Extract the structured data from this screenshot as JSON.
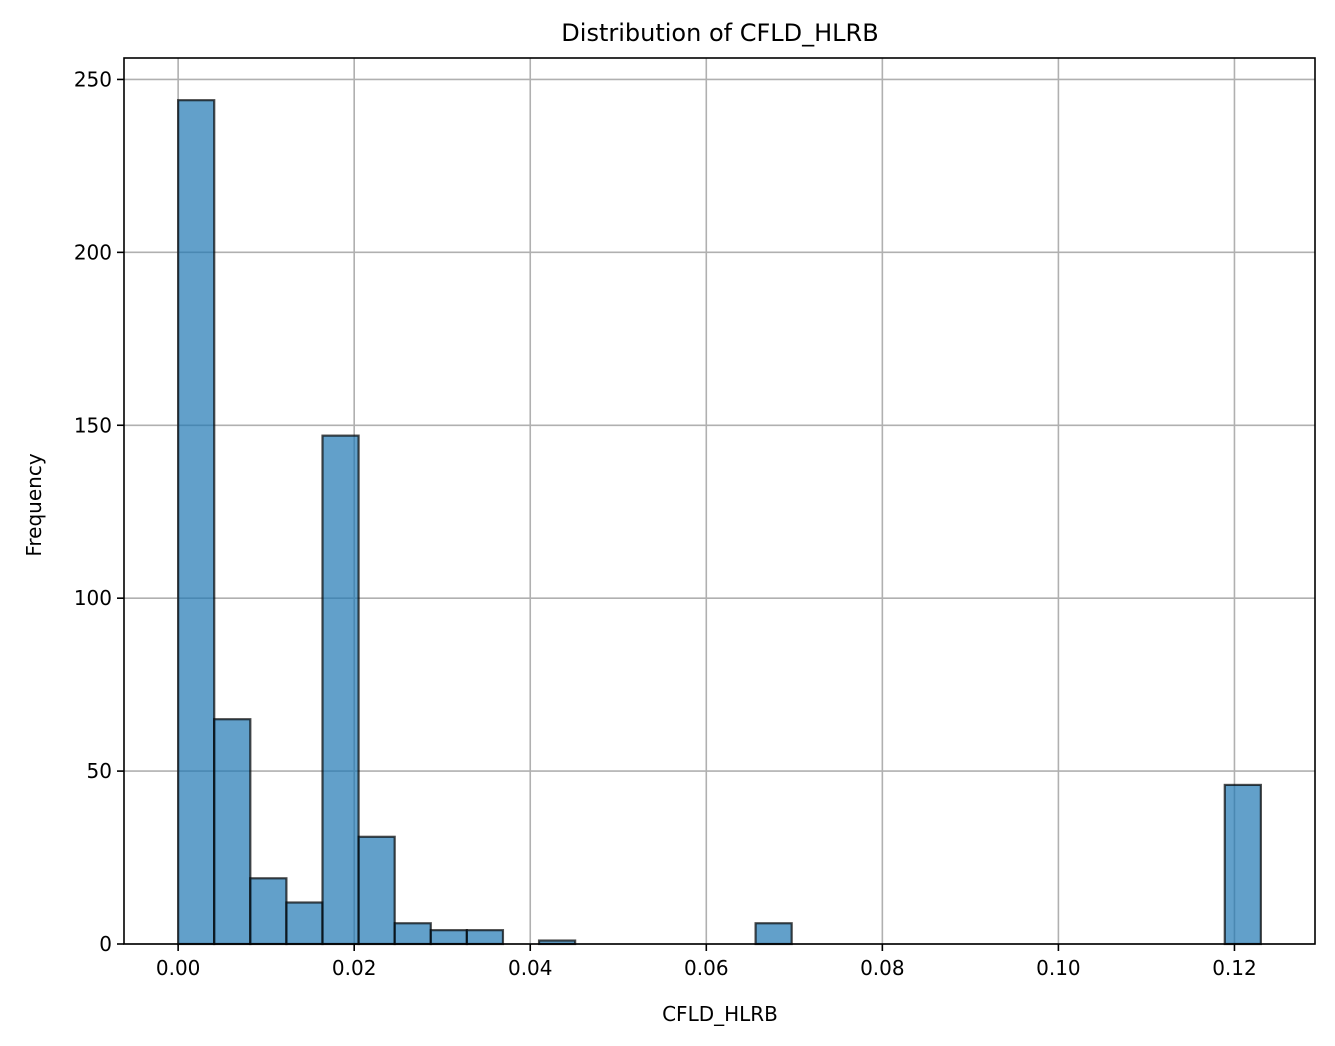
{
  "chart_data": {
    "type": "bar",
    "title": "Distribution of CFLD_HLRB",
    "xlabel": "CFLD_HLRB",
    "ylabel": "Frequency",
    "xlim": [
      -0.00615,
      0.12915
    ],
    "ylim": [
      0,
      256.2
    ],
    "xticks": [
      0.0,
      0.02,
      0.04,
      0.06,
      0.08,
      0.1,
      0.12
    ],
    "xtick_labels": [
      "0.00",
      "0.02",
      "0.04",
      "0.06",
      "0.08",
      "0.10",
      "0.12"
    ],
    "yticks": [
      0,
      50,
      100,
      150,
      200,
      250
    ],
    "ytick_labels": [
      "0",
      "50",
      "100",
      "150",
      "200",
      "250"
    ],
    "grid": true,
    "bar_color": "#1f77b4",
    "bar_edge_color": "#000000",
    "bins": [
      {
        "start": 0.0,
        "end": 0.0041,
        "count": 244
      },
      {
        "start": 0.0041,
        "end": 0.0082,
        "count": 65
      },
      {
        "start": 0.0082,
        "end": 0.0123,
        "count": 19
      },
      {
        "start": 0.0123,
        "end": 0.0164,
        "count": 12
      },
      {
        "start": 0.0164,
        "end": 0.0205,
        "count": 147
      },
      {
        "start": 0.0205,
        "end": 0.0246,
        "count": 31
      },
      {
        "start": 0.0246,
        "end": 0.0287,
        "count": 6
      },
      {
        "start": 0.0287,
        "end": 0.0328,
        "count": 4
      },
      {
        "start": 0.0328,
        "end": 0.0369,
        "count": 4
      },
      {
        "start": 0.0369,
        "end": 0.041,
        "count": 0
      },
      {
        "start": 0.041,
        "end": 0.0451,
        "count": 1
      },
      {
        "start": 0.0451,
        "end": 0.0492,
        "count": 0
      },
      {
        "start": 0.0492,
        "end": 0.0533,
        "count": 0
      },
      {
        "start": 0.0533,
        "end": 0.0574,
        "count": 0
      },
      {
        "start": 0.0574,
        "end": 0.0615,
        "count": 0
      },
      {
        "start": 0.0615,
        "end": 0.0656,
        "count": 0
      },
      {
        "start": 0.0656,
        "end": 0.0697,
        "count": 6
      },
      {
        "start": 0.0697,
        "end": 0.0738,
        "count": 0
      },
      {
        "start": 0.0738,
        "end": 0.0779,
        "count": 0
      },
      {
        "start": 0.0779,
        "end": 0.082,
        "count": 0
      },
      {
        "start": 0.082,
        "end": 0.0861,
        "count": 0
      },
      {
        "start": 0.0861,
        "end": 0.0902,
        "count": 0
      },
      {
        "start": 0.0902,
        "end": 0.0943,
        "count": 0
      },
      {
        "start": 0.0943,
        "end": 0.0984,
        "count": 0
      },
      {
        "start": 0.0984,
        "end": 0.1025,
        "count": 0
      },
      {
        "start": 0.1025,
        "end": 0.1066,
        "count": 0
      },
      {
        "start": 0.1066,
        "end": 0.1107,
        "count": 0
      },
      {
        "start": 0.1107,
        "end": 0.1148,
        "count": 0
      },
      {
        "start": 0.1148,
        "end": 0.1189,
        "count": 0
      },
      {
        "start": 0.1189,
        "end": 0.123,
        "count": 46
      }
    ]
  }
}
